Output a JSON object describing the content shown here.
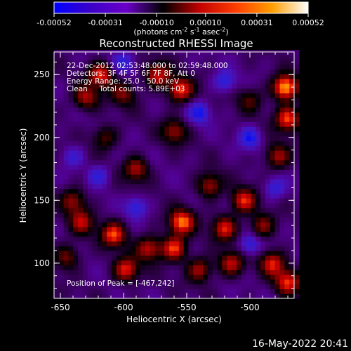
{
  "chart_data": {
    "type": "heatmap",
    "title": "Reconstructed RHESSI Image",
    "xlabel": "Heliocentric X (arcsec)",
    "ylabel": "Heliocentric Y (arcsec)",
    "xlim": [
      -655,
      -465
    ],
    "ylim": [
      72,
      268
    ],
    "xticks": [
      -650,
      -600,
      -550,
      -500
    ],
    "yticks": [
      100,
      150,
      200,
      250
    ],
    "grid": false,
    "colorbar": {
      "location": "top",
      "range": [
        -0.00052,
        0.00052
      ],
      "ticks": [
        "-0.00052",
        "-0.00031",
        "-0.00010",
        "0.00010",
        "0.00031",
        "0.00052"
      ],
      "tick_values": [
        -0.00052,
        -0.00031,
        -0.0001,
        0.0001,
        0.00031,
        0.00052
      ],
      "units_parts": [
        "(photons cm",
        "-2",
        " s",
        "-1",
        " asec",
        "-2",
        ")"
      ],
      "colors": [
        "#0000ff",
        "#3a00c8",
        "#6a00c8",
        "#000000",
        "#c00000",
        "#ff3c00",
        "#ff9e00",
        "#ffffff"
      ]
    },
    "annotations": [
      "22-Dec-2012 02:53:48.000 to 02:59:48.000",
      "Detectors: 3F 4F 5F 6F 7F 8F, Att 0",
      "Energy Range: 25.0 - 50.0 keV",
      "Clean     Total counts: 5.89E+03",
      "Position of Peak = [-467,242]"
    ],
    "peak": {
      "x": -467,
      "y": 242
    },
    "hot_spots": [
      {
        "x": -532,
        "y": 162,
        "v": 0.55
      },
      {
        "x": -554,
        "y": 133,
        "v": 0.85
      },
      {
        "x": -560,
        "y": 112,
        "v": 0.75
      },
      {
        "x": -608,
        "y": 123,
        "v": 0.75
      },
      {
        "x": -598,
        "y": 95,
        "v": 0.7
      },
      {
        "x": -580,
        "y": 112,
        "v": 0.6
      },
      {
        "x": -520,
        "y": 128,
        "v": 0.65
      },
      {
        "x": -505,
        "y": 150,
        "v": 0.7
      },
      {
        "x": -472,
        "y": 240,
        "v": 1.0
      },
      {
        "x": -470,
        "y": 215,
        "v": 0.75
      },
      {
        "x": -478,
        "y": 185,
        "v": 0.55
      },
      {
        "x": -555,
        "y": 238,
        "v": 0.75
      },
      {
        "x": -573,
        "y": 250,
        "v": 0.65
      },
      {
        "x": -618,
        "y": 250,
        "v": 0.7
      },
      {
        "x": -630,
        "y": 232,
        "v": 0.55
      },
      {
        "x": -590,
        "y": 175,
        "v": 0.55
      },
      {
        "x": -640,
        "y": 150,
        "v": 0.5
      },
      {
        "x": -633,
        "y": 133,
        "v": 0.55
      },
      {
        "x": -560,
        "y": 205,
        "v": 0.5
      },
      {
        "x": -515,
        "y": 100,
        "v": 0.6
      },
      {
        "x": -482,
        "y": 100,
        "v": 0.65
      },
      {
        "x": -470,
        "y": 85,
        "v": 0.7
      },
      {
        "x": -490,
        "y": 130,
        "v": 0.5
      },
      {
        "x": -615,
        "y": 200,
        "v": 0.4
      },
      {
        "x": -645,
        "y": 105,
        "v": 0.45
      },
      {
        "x": -540,
        "y": 95,
        "v": 0.55
      },
      {
        "x": -600,
        "y": 235,
        "v": 0.45
      },
      {
        "x": -500,
        "y": 230,
        "v": 0.35
      }
    ],
    "cold_spots": [
      {
        "x": -540,
        "y": 220,
        "v": -0.5
      },
      {
        "x": -520,
        "y": 245,
        "v": -0.45
      },
      {
        "x": -500,
        "y": 200,
        "v": -0.5
      },
      {
        "x": -590,
        "y": 145,
        "v": -0.45
      },
      {
        "x": -620,
        "y": 170,
        "v": -0.4
      },
      {
        "x": -500,
        "y": 115,
        "v": -0.45
      },
      {
        "x": -640,
        "y": 185,
        "v": -0.35
      },
      {
        "x": -600,
        "y": 260,
        "v": -0.4
      },
      {
        "x": -480,
        "y": 160,
        "v": -0.4
      }
    ]
  },
  "footer": {
    "timestamp": "16-May-2022 20:41"
  }
}
